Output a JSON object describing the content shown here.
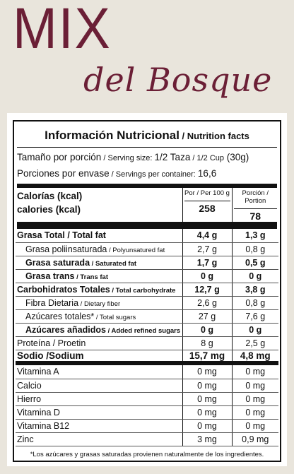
{
  "brand": {
    "line1": "MIX",
    "line2": "del Bosque"
  },
  "label": {
    "title": "Información Nutricional",
    "title_en": " / Nutrition facts",
    "serving_size_es": "Tamaño por porción",
    "serving_size_en": " / Serving size: ",
    "serving_size_val": "1/2 Taza",
    "serving_size_val_en": " / 1/2 Cup",
    "serving_size_g": " (30g)",
    "servings_es": "Porciones por envase",
    "servings_en": " / Servings per container: ",
    "servings_val": "16,6",
    "calories_es": "Calorías (kcal)",
    "calories_en": "calories (kcal)",
    "col1": "Por / Per 100 g",
    "col2": "Porción / Portion",
    "cal_100": "258",
    "cal_portion": "78",
    "nutrients": [
      {
        "es": "Grasa Total / Total fat",
        "en": "",
        "v1": "4,4 g",
        "v2": "1,3 g",
        "bold": true,
        "indent": false
      },
      {
        "es": "Grasa poliinsaturada",
        "en": " / Polyunsatured fat",
        "v1": "2,7 g",
        "v2": "0,8 g",
        "bold": false,
        "indent": true
      },
      {
        "es": "Grasa saturada",
        "en": " / Saturated fat",
        "v1": "1,7 g",
        "v2": "0,5 g",
        "bold": true,
        "indent": true
      },
      {
        "es": "Grasa trans",
        "en": " / Trans fat",
        "v1": "0 g",
        "v2": "0 g",
        "bold": true,
        "indent": true
      },
      {
        "es": "Carbohidratos Totales",
        "en": " / Total carbohydrate",
        "v1": "12,7 g",
        "v2": "3,8 g",
        "bold": true,
        "indent": false
      },
      {
        "es": "Fibra Dietaria",
        "en": " / Dietary fiber",
        "v1": "2,6 g",
        "v2": "0,8 g",
        "bold": false,
        "indent": true
      },
      {
        "es": "Azúcares totales*",
        "en": " / Total sugars",
        "v1": "27 g",
        "v2": "7,6 g",
        "bold": false,
        "indent": true
      },
      {
        "es": "Azúcares añadidos",
        "en": " / Added refined sugars",
        "v1": "0 g",
        "v2": "0 g",
        "bold": true,
        "indent": true
      },
      {
        "es": "Proteína / Proetin",
        "en": "",
        "v1": "8 g",
        "v2": "2,5 g",
        "bold": false,
        "indent": false
      }
    ],
    "sodium": {
      "es": "Sodio /Sodium",
      "v1": "15,7 mg",
      "v2": "4,8 mg"
    },
    "vitamins": [
      {
        "name": "Vitamina A",
        "v1": "0 mg",
        "v2": "0 mg"
      },
      {
        "name": "Calcio",
        "v1": "0 mg",
        "v2": "0 mg"
      },
      {
        "name": "Hierro",
        "v1": "0 mg",
        "v2": "0 mg"
      },
      {
        "name": "Vitamina D",
        "v1": "0 mg",
        "v2": "0 mg"
      },
      {
        "name": "Vitamina B12",
        "v1": "0 mg",
        "v2": "0 mg"
      },
      {
        "name": "Zinc",
        "v1": "3 mg",
        "v2": "0,9 mg"
      }
    ],
    "footnote": "*Los azúcares y grasas saturadas provienen naturalmente de los ingredientes."
  },
  "colors": {
    "brand": "#6b1f36",
    "background": "#e9e5dc"
  }
}
